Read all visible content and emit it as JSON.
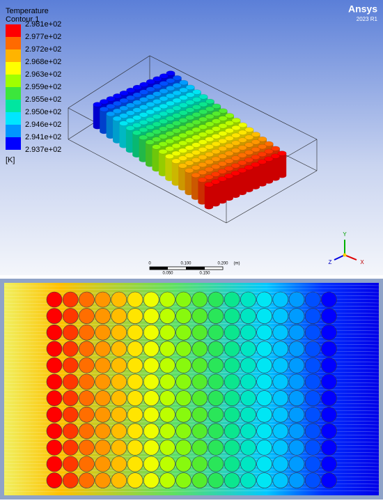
{
  "legend": {
    "title": "Temperature",
    "subtitle": "Contour 1",
    "labels": [
      "2.981e+02",
      "2.977e+02",
      "2.972e+02",
      "2.968e+02",
      "2.963e+02",
      "2.959e+02",
      "2.955e+02",
      "2.950e+02",
      "2.946e+02",
      "2.941e+02",
      "2.937e+02"
    ],
    "colors": [
      "#ff0000",
      "#ff6a00",
      "#ffb400",
      "#ffff00",
      "#a0ff00",
      "#3ce63c",
      "#00e6a0",
      "#00e6ff",
      "#0096ff",
      "#0000ff"
    ],
    "unit": "[K]"
  },
  "logo": {
    "name": "Ansys",
    "version": "2023 R1"
  },
  "scale": {
    "top": [
      "0",
      "0.100",
      "0.200",
      "(m)"
    ],
    "bottom": [
      "0.050",
      "0.150"
    ]
  },
  "triad": {
    "y": "Y",
    "z": "Z",
    "x": "X"
  }
}
